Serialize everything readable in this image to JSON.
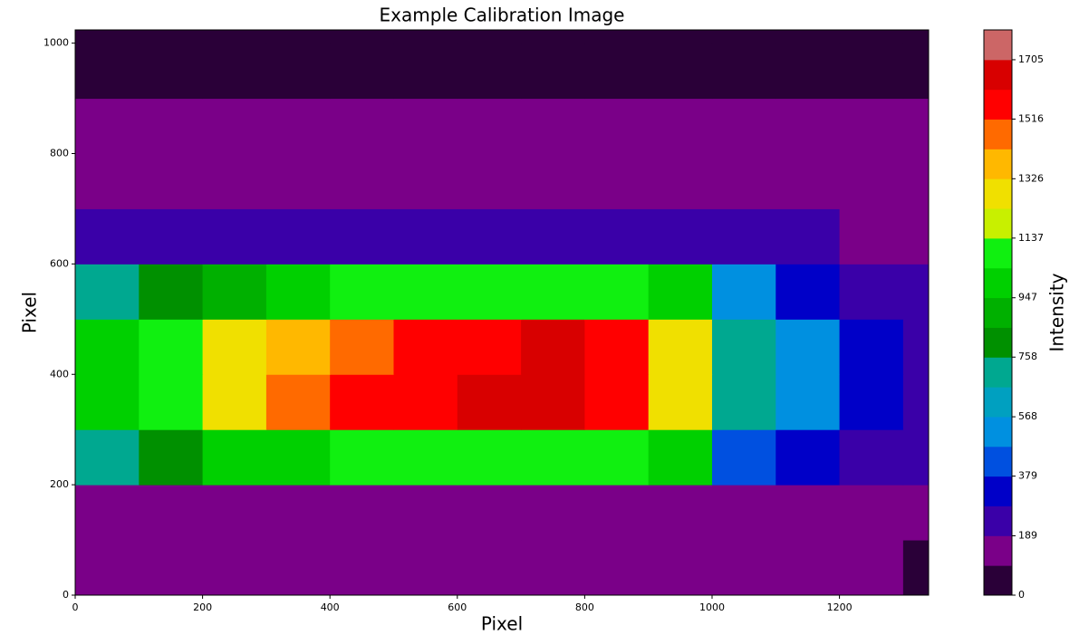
{
  "chart_data": {
    "type": "heatmap",
    "title": "Example Calibration Image",
    "x_label": "Pixel",
    "y_label": "Pixel",
    "xlim": [
      0,
      1340
    ],
    "ylim": [
      0,
      1024
    ],
    "xticks": [
      0,
      200,
      400,
      600,
      800,
      1000,
      1200
    ],
    "yticks": [
      0,
      200,
      400,
      600,
      800,
      1000
    ],
    "x_edges": [
      0,
      100,
      200,
      300,
      400,
      500,
      600,
      700,
      800,
      900,
      1000,
      1100,
      1200,
      1300,
      1340
    ],
    "y_edges": [
      0,
      100,
      200,
      300,
      400,
      500,
      600,
      700,
      800,
      900,
      1000,
      1024
    ],
    "z": [
      [
        110,
        110,
        110,
        110,
        110,
        110,
        110,
        110,
        110,
        110,
        110,
        110,
        100,
        90
      ],
      [
        150,
        150,
        150,
        150,
        150,
        150,
        150,
        150,
        150,
        150,
        160,
        160,
        140,
        120
      ],
      [
        700,
        800,
        950,
        1000,
        1050,
        1100,
        1100,
        1100,
        1050,
        950,
        450,
        320,
        250,
        200
      ],
      [
        1000,
        1100,
        1300,
        1450,
        1550,
        1600,
        1620,
        1620,
        1600,
        1300,
        700,
        550,
        300,
        220
      ],
      [
        1000,
        1050,
        1250,
        1400,
        1500,
        1560,
        1600,
        1620,
        1580,
        1250,
        700,
        550,
        320,
        220
      ],
      [
        750,
        800,
        900,
        1000,
        1050,
        1100,
        1100,
        1100,
        1050,
        950,
        500,
        350,
        250,
        200
      ],
      [
        230,
        230,
        230,
        230,
        240,
        240,
        240,
        240,
        230,
        220,
        200,
        190,
        170,
        150
      ],
      [
        140,
        140,
        140,
        140,
        140,
        140,
        140,
        140,
        140,
        140,
        140,
        140,
        130,
        120
      ],
      [
        110,
        110,
        110,
        110,
        110,
        110,
        110,
        110,
        110,
        110,
        110,
        110,
        100,
        100
      ],
      [
        90,
        90,
        90,
        90,
        90,
        90,
        90,
        90,
        90,
        90,
        90,
        90,
        85,
        85
      ],
      [
        80,
        80,
        80,
        80,
        80,
        80,
        80,
        80,
        80,
        80,
        80,
        80,
        80,
        80
      ]
    ],
    "colorbar": {
      "label": "Intensity",
      "clim": [
        0,
        1800
      ],
      "ticks": [
        0,
        189,
        379,
        568,
        758,
        947,
        1137,
        1326,
        1516,
        1705
      ],
      "colors": [
        "#2a0038",
        "#7a0088",
        "#3a00a8",
        "#0000c8",
        "#0050e0",
        "#0090e0",
        "#00a0c0",
        "#00a890",
        "#009000",
        "#00b000",
        "#00d000",
        "#10f010",
        "#c8f000",
        "#f0e000",
        "#ffb800",
        "#ff6a00",
        "#ff0000",
        "#d80000",
        "#cc6666"
      ]
    }
  }
}
